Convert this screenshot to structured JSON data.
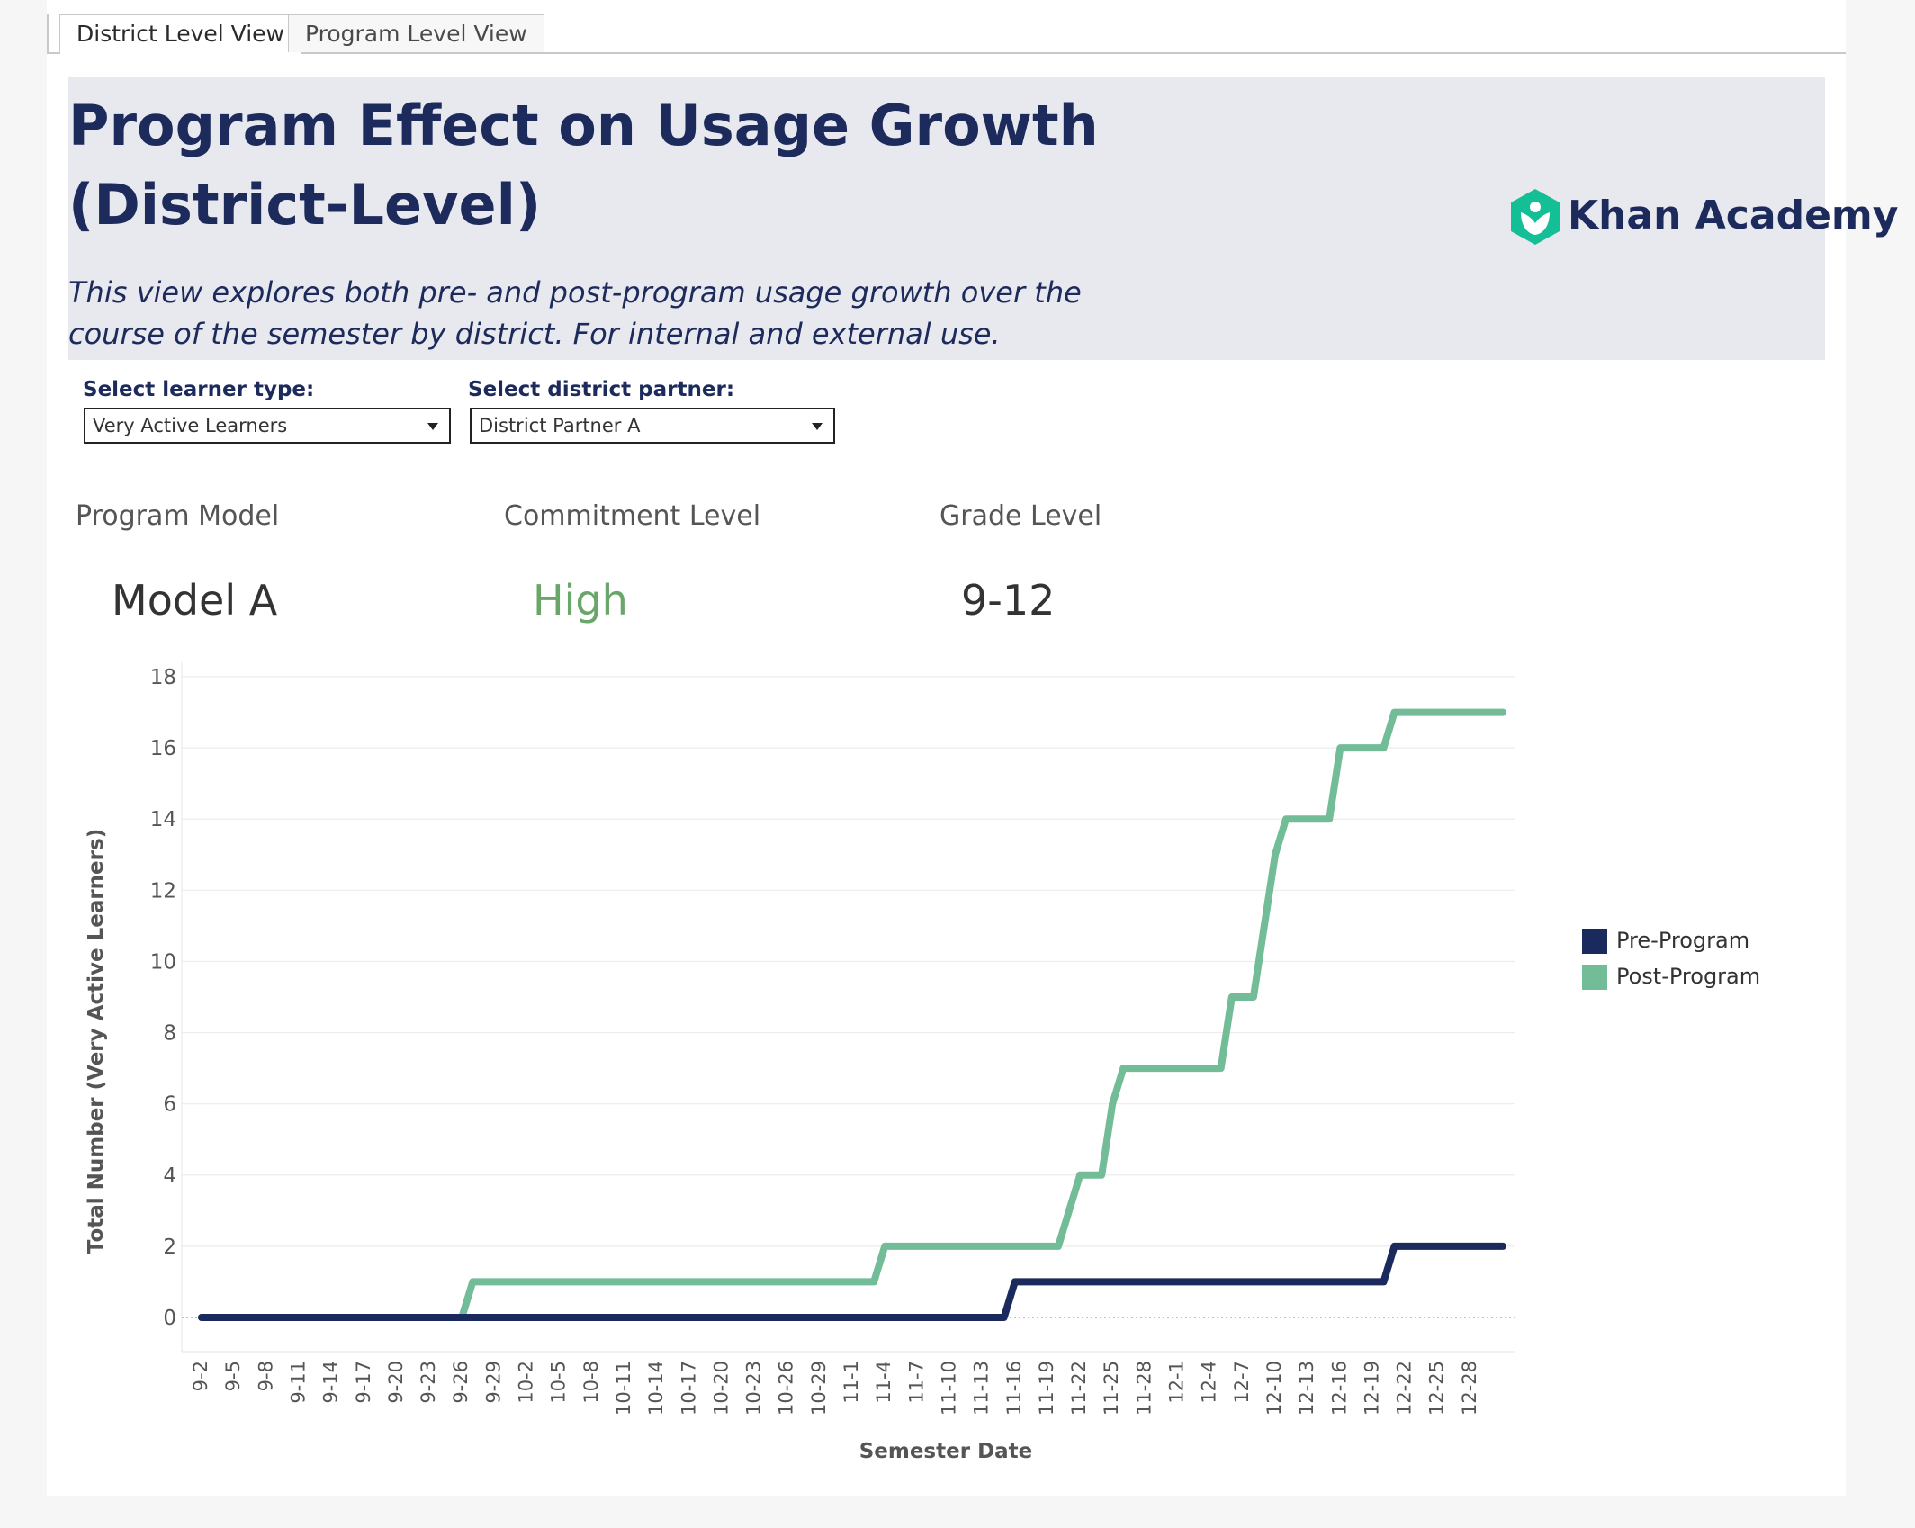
{
  "tabs": [
    {
      "label": "District Level View",
      "active": true
    },
    {
      "label": "Program Level View",
      "active": false
    }
  ],
  "header": {
    "title_line1": "Program Effect on Usage Growth",
    "title_line2": "(District-Level)",
    "subtitle_line1": "This view explores both pre- and post-program usage growth over the",
    "subtitle_line2": "course of the semester by district. For internal and external use.",
    "logo_text": "Khan Academy",
    "logo_icon": "khan-academy-logo-icon"
  },
  "filters": {
    "learner_type": {
      "label": "Select learner type:",
      "value": "Very Active Learners"
    },
    "district_partner": {
      "label": "Select district partner:",
      "value": "District Partner A"
    }
  },
  "kpis": {
    "program_model": {
      "label": "Program Model",
      "value": "Model A"
    },
    "commitment_level": {
      "label": "Commitment Level",
      "value": "High"
    },
    "grade_level": {
      "label": "Grade Level",
      "value": "9-12"
    }
  },
  "colors": {
    "pre": "#1b2a5c",
    "post": "#72bd98",
    "brand": "#1c2a5c",
    "high": "#6aa56a",
    "logo_green": "#14bf96"
  },
  "chart_data": {
    "type": "line",
    "step": true,
    "xlabel": "Semester Date",
    "ylabel": "Total Number (Very Active Learners)",
    "ylim": [
      0,
      18
    ],
    "yticks": [
      0,
      2,
      4,
      6,
      8,
      10,
      12,
      14,
      16,
      18
    ],
    "categories": [
      "9-2",
      "9-5",
      "9-8",
      "9-11",
      "9-14",
      "9-17",
      "9-20",
      "9-23",
      "9-26",
      "9-29",
      "10-2",
      "10-5",
      "10-8",
      "10-11",
      "10-14",
      "10-17",
      "10-20",
      "10-23",
      "10-26",
      "10-29",
      "11-1",
      "11-4",
      "11-7",
      "11-10",
      "11-13",
      "11-16",
      "11-19",
      "11-22",
      "11-25",
      "11-28",
      "12-1",
      "12-4",
      "12-7",
      "12-10",
      "12-13",
      "12-16",
      "12-19",
      "12-22",
      "12-25",
      "12-28"
    ],
    "legend_position": "right",
    "series": [
      {
        "name": "Pre-Program",
        "points": [
          {
            "x": "9-2",
            "y": 0
          },
          {
            "x": "11-15",
            "y": 0
          },
          {
            "x": "11-16",
            "y": 1
          },
          {
            "x": "12-20",
            "y": 1
          },
          {
            "x": "12-21",
            "y": 2
          },
          {
            "x": "12-31",
            "y": 2
          }
        ]
      },
      {
        "name": "Post-Program",
        "points": [
          {
            "x": "9-2",
            "y": 0
          },
          {
            "x": "9-26",
            "y": 0
          },
          {
            "x": "9-27",
            "y": 1
          },
          {
            "x": "11-3",
            "y": 1
          },
          {
            "x": "11-4",
            "y": 2
          },
          {
            "x": "11-20",
            "y": 2
          },
          {
            "x": "11-22",
            "y": 4
          },
          {
            "x": "11-24",
            "y": 4
          },
          {
            "x": "11-25",
            "y": 6
          },
          {
            "x": "11-26",
            "y": 7
          },
          {
            "x": "12-5",
            "y": 7
          },
          {
            "x": "12-6",
            "y": 9
          },
          {
            "x": "12-8",
            "y": 9
          },
          {
            "x": "12-9",
            "y": 11
          },
          {
            "x": "12-10",
            "y": 13
          },
          {
            "x": "12-11",
            "y": 14
          },
          {
            "x": "12-15",
            "y": 14
          },
          {
            "x": "12-16",
            "y": 16
          },
          {
            "x": "12-20",
            "y": 16
          },
          {
            "x": "12-21",
            "y": 17
          },
          {
            "x": "12-31",
            "y": 17
          }
        ]
      }
    ]
  }
}
